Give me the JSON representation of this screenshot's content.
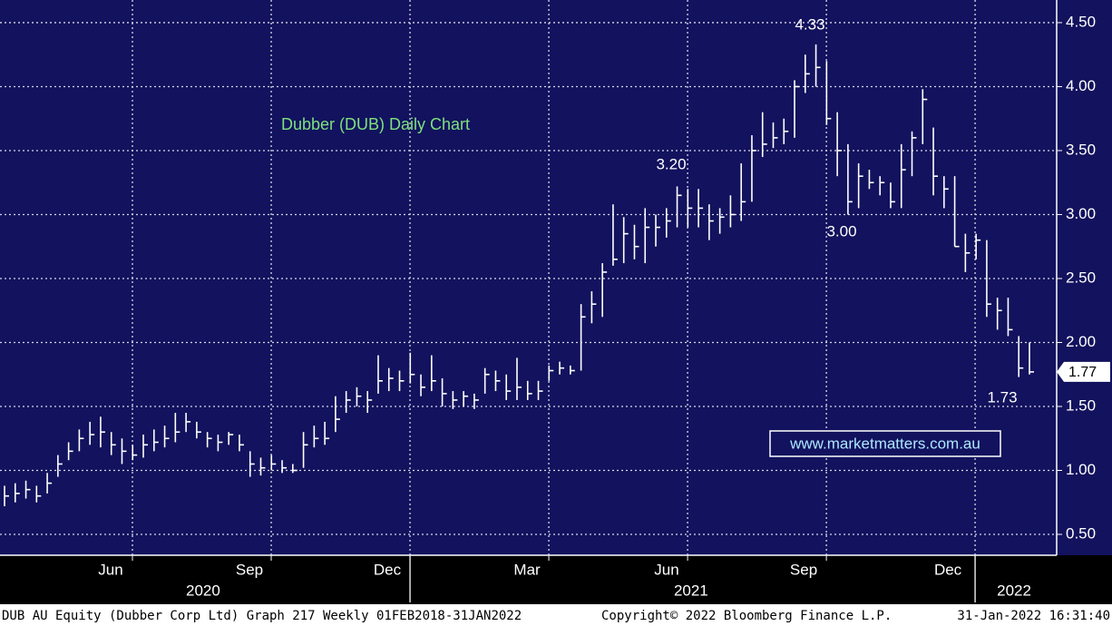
{
  "chart_data": {
    "type": "ohlc",
    "title": "Dubber (DUB) Daily Chart",
    "watermark": "www.marketmatters.com.au",
    "color": "#ffffff",
    "grid": true,
    "x": [
      0,
      1,
      2,
      3,
      4,
      5,
      6,
      7,
      8,
      9,
      10,
      11,
      12,
      13,
      14,
      15,
      16,
      17,
      18,
      19,
      20,
      21,
      22,
      23,
      24,
      25,
      26,
      27,
      28,
      29,
      30,
      31,
      32,
      33,
      34,
      35,
      36,
      37,
      38,
      39,
      40,
      41,
      42,
      43,
      44,
      45,
      46,
      47,
      48,
      49,
      50,
      51,
      52,
      53,
      54,
      55,
      56,
      57,
      58,
      59,
      60,
      61,
      62,
      63,
      64,
      65,
      66,
      67,
      68,
      69,
      70,
      71,
      72,
      73,
      74,
      75,
      76,
      77,
      78,
      79,
      80,
      81,
      82,
      83,
      84,
      85,
      86,
      87,
      88,
      89,
      90,
      91,
      92,
      93,
      94,
      95,
      96
    ],
    "series": [
      {
        "name": "high",
        "values": [
          0.88,
          0.9,
          0.92,
          0.88,
          0.98,
          1.12,
          1.22,
          1.32,
          1.38,
          1.42,
          1.3,
          1.25,
          1.2,
          1.28,
          1.32,
          1.35,
          1.45,
          1.45,
          1.38,
          1.3,
          1.28,
          1.3,
          1.28,
          1.15,
          1.1,
          1.12,
          1.08,
          1.05,
          1.3,
          1.35,
          1.38,
          1.58,
          1.62,
          1.65,
          1.62,
          1.9,
          1.8,
          1.78,
          1.92,
          1.75,
          1.9,
          1.72,
          1.62,
          1.62,
          1.6,
          1.8,
          1.78,
          1.75,
          1.88,
          1.7,
          1.7,
          1.82,
          1.85,
          1.82,
          2.3,
          2.4,
          2.62,
          3.08,
          2.98,
          2.92,
          3.05,
          3.0,
          3.05,
          3.22,
          3.2,
          3.2,
          3.08,
          3.05,
          3.15,
          3.4,
          3.62,
          3.8,
          3.72,
          3.75,
          4.05,
          4.25,
          4.33,
          4.2,
          3.8,
          3.55,
          3.4,
          3.35,
          3.3,
          3.25,
          3.55,
          3.65,
          3.98,
          3.68,
          3.3,
          3.3,
          2.85,
          2.85,
          2.8,
          2.35,
          2.35,
          2.05,
          2.0
        ]
      },
      {
        "name": "low",
        "values": [
          0.72,
          0.75,
          0.78,
          0.75,
          0.82,
          0.95,
          1.08,
          1.15,
          1.2,
          1.18,
          1.12,
          1.05,
          1.08,
          1.1,
          1.15,
          1.18,
          1.22,
          1.3,
          1.25,
          1.18,
          1.15,
          1.2,
          1.15,
          0.95,
          0.96,
          1.0,
          0.98,
          0.98,
          1.02,
          1.18,
          1.2,
          1.3,
          1.45,
          1.5,
          1.45,
          1.6,
          1.62,
          1.62,
          1.68,
          1.58,
          1.62,
          1.5,
          1.48,
          1.5,
          1.48,
          1.6,
          1.62,
          1.55,
          1.55,
          1.55,
          1.55,
          1.7,
          1.75,
          1.75,
          1.78,
          2.15,
          2.2,
          2.6,
          2.62,
          2.65,
          2.62,
          2.75,
          2.82,
          2.9,
          2.9,
          2.9,
          2.8,
          2.85,
          2.9,
          2.95,
          3.1,
          3.45,
          3.52,
          3.55,
          3.6,
          3.95,
          4.0,
          3.7,
          3.3,
          3.0,
          3.05,
          3.2,
          3.15,
          3.05,
          3.05,
          3.3,
          3.55,
          3.15,
          3.05,
          2.75,
          2.55,
          2.65,
          2.2,
          2.1,
          2.05,
          1.73,
          1.75
        ]
      },
      {
        "name": "close",
        "values": [
          0.8,
          0.82,
          0.85,
          0.8,
          0.9,
          1.05,
          1.15,
          1.25,
          1.28,
          1.3,
          1.2,
          1.15,
          1.12,
          1.2,
          1.22,
          1.25,
          1.3,
          1.38,
          1.3,
          1.25,
          1.22,
          1.28,
          1.2,
          1.05,
          1.02,
          1.05,
          1.02,
          1.0,
          1.2,
          1.25,
          1.25,
          1.4,
          1.55,
          1.58,
          1.55,
          1.7,
          1.72,
          1.7,
          1.75,
          1.65,
          1.7,
          1.6,
          1.55,
          1.58,
          1.55,
          1.75,
          1.7,
          1.62,
          1.65,
          1.6,
          1.62,
          1.78,
          1.8,
          1.78,
          2.2,
          2.3,
          2.55,
          2.65,
          2.85,
          2.75,
          2.9,
          2.9,
          2.95,
          3.15,
          3.05,
          3.05,
          2.95,
          2.98,
          3.0,
          3.1,
          3.5,
          3.55,
          3.6,
          3.65,
          4.0,
          4.1,
          4.15,
          3.75,
          3.5,
          3.1,
          3.3,
          3.25,
          3.25,
          3.1,
          3.35,
          3.6,
          3.9,
          3.3,
          3.2,
          2.75,
          2.7,
          2.8,
          2.3,
          2.25,
          2.1,
          1.8,
          1.77
        ]
      }
    ],
    "last_price": {
      "value": 1.77,
      "label": "1.77"
    },
    "annotations": [
      "4.33",
      "3.20",
      "3.00",
      "1.73"
    ],
    "xlim": [
      -0.425,
      98.55
    ],
    "xticks": [
      {
        "value": 9.94,
        "label": "Jun"
      },
      {
        "value": 22.94,
        "label": "Sep"
      },
      {
        "value": 35.85,
        "label": "Dec"
      },
      {
        "value": 48.94,
        "label": "Mar"
      },
      {
        "value": 62.02,
        "label": "Jun"
      },
      {
        "value": 74.85,
        "label": "Sep"
      },
      {
        "value": 88.36,
        "label": "Dec"
      }
    ],
    "xgrid": [
      11.98,
      24.98,
      37.98,
      50.98,
      63.98,
      76.98,
      90.91
    ],
    "years": [
      {
        "value": 18.6,
        "label": "2020"
      },
      {
        "value": 64.3,
        "label": "2021"
      },
      {
        "value": 94.56,
        "label": "2022"
      }
    ],
    "year_separators": [
      37.98,
      90.91
    ],
    "ylim": [
      0.337,
      4.677
    ],
    "yticks": [
      {
        "value": 0.5,
        "label": "0.50"
      },
      {
        "value": 1.0,
        "label": "1.00"
      },
      {
        "value": 1.5,
        "label": "1.50"
      },
      {
        "value": 2.0,
        "label": "2.00"
      },
      {
        "value": 2.5,
        "label": "2.50"
      },
      {
        "value": 3.0,
        "label": "3.00"
      },
      {
        "value": 3.5,
        "label": "3.50"
      },
      {
        "value": 4.0,
        "label": "4.00"
      },
      {
        "value": 4.5,
        "label": "4.50"
      }
    ],
    "footer": {
      "left": "DUB AU Equity (Dubber Corp Ltd) Graph 217  Weekly 01FEB2018-31JAN2022",
      "center": "Copyright© 2022 Bloomberg Finance L.P.",
      "right": "31-Jan-2022 16:31:40"
    }
  }
}
